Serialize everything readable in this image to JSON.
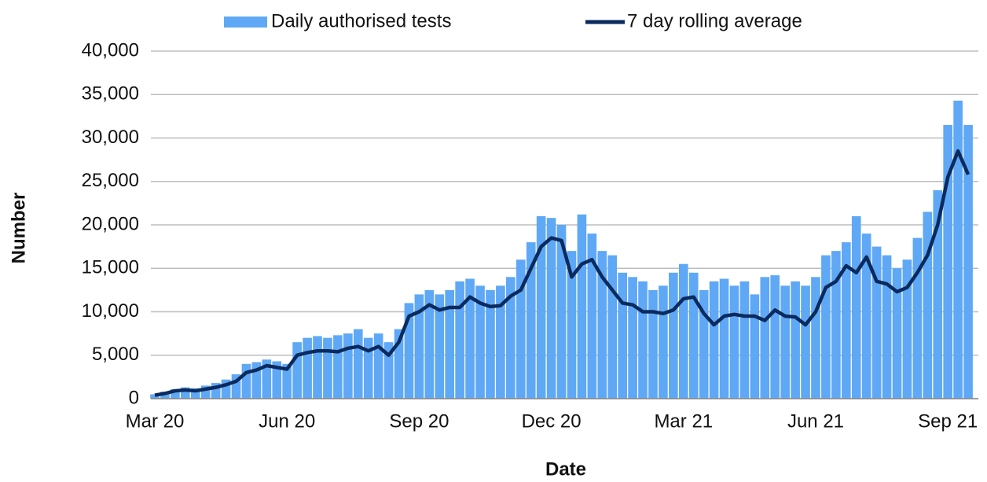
{
  "chart_data": {
    "type": "bar_line",
    "x_label": "Date",
    "y_label": "Number",
    "categories": [
      "Mar 20",
      null,
      null,
      null,
      null,
      null,
      null,
      null,
      null,
      null,
      null,
      null,
      null,
      "Jun 20",
      null,
      null,
      null,
      null,
      null,
      null,
      null,
      null,
      null,
      null,
      null,
      null,
      "Sep 20",
      null,
      null,
      null,
      null,
      null,
      null,
      null,
      null,
      null,
      null,
      null,
      null,
      "Dec 20",
      null,
      null,
      null,
      null,
      null,
      null,
      null,
      null,
      null,
      null,
      null,
      null,
      "Mar 21",
      null,
      null,
      null,
      null,
      null,
      null,
      null,
      null,
      null,
      null,
      null,
      null,
      "Jun 21",
      null,
      null,
      null,
      null,
      null,
      null,
      null,
      null,
      null,
      null,
      null,
      null,
      "Sep 21",
      null,
      null
    ],
    "series": [
      {
        "name": "Daily authorised tests",
        "kind": "bar",
        "color": "#5fa8f5",
        "values": [
          500,
          800,
          1100,
          1300,
          1200,
          1500,
          1800,
          2200,
          2800,
          4000,
          4200,
          4500,
          4300,
          4000,
          6500,
          7000,
          7200,
          7000,
          7300,
          7500,
          8000,
          7000,
          7500,
          6500,
          8000,
          11000,
          12000,
          12500,
          12000,
          12500,
          13500,
          13800,
          13000,
          12500,
          13000,
          14000,
          16000,
          18000,
          21000,
          20800,
          20000,
          17000,
          21200,
          19000,
          17000,
          16500,
          14500,
          14000,
          13500,
          12500,
          13000,
          14500,
          15500,
          14500,
          12500,
          13500,
          13800,
          13000,
          13500,
          12000,
          14000,
          14200,
          13000,
          13500,
          13000,
          14000,
          16500,
          17000,
          18000,
          21000,
          19000,
          17500,
          16500,
          15000,
          16000,
          18500,
          21500,
          24000,
          31500,
          34300,
          31500
        ]
      },
      {
        "name": "7 day rolling average",
        "kind": "line",
        "color": "#0b2a5e",
        "values": [
          400,
          600,
          900,
          1000,
          900,
          1100,
          1300,
          1600,
          2000,
          3000,
          3300,
          3800,
          3600,
          3400,
          5000,
          5300,
          5500,
          5500,
          5400,
          5800,
          6000,
          5500,
          6000,
          5000,
          6500,
          9500,
          10000,
          10800,
          10200,
          10500,
          10500,
          11700,
          11000,
          10600,
          10700,
          11800,
          12500,
          15000,
          17500,
          18500,
          18200,
          14000,
          15500,
          16000,
          14000,
          12500,
          11000,
          10800,
          10000,
          10000,
          9800,
          10200,
          11500,
          11700,
          9800,
          8500,
          9500,
          9700,
          9500,
          9500,
          9000,
          10200,
          9500,
          9400,
          8500,
          10000,
          12800,
          13500,
          15300,
          14500,
          16300,
          13500,
          13200,
          12300,
          12800,
          14500,
          16500,
          20000,
          25500,
          28500,
          25800
        ]
      }
    ],
    "ylim": [
      0,
      40000
    ],
    "yticks": [
      0,
      {
        "value": 5000,
        "label": "5,000"
      },
      {
        "value": 10000,
        "label": "10,000"
      },
      {
        "value": 15000,
        "label": "15,000"
      },
      {
        "value": 20000,
        "label": "20,000"
      },
      {
        "value": 25000,
        "label": "25,000"
      },
      {
        "value": 30000,
        "label": "30,000"
      },
      {
        "value": 35000,
        "label": "35,000"
      },
      {
        "value": 40000,
        "label": "40,000"
      }
    ],
    "grid": true,
    "legend": "top"
  }
}
